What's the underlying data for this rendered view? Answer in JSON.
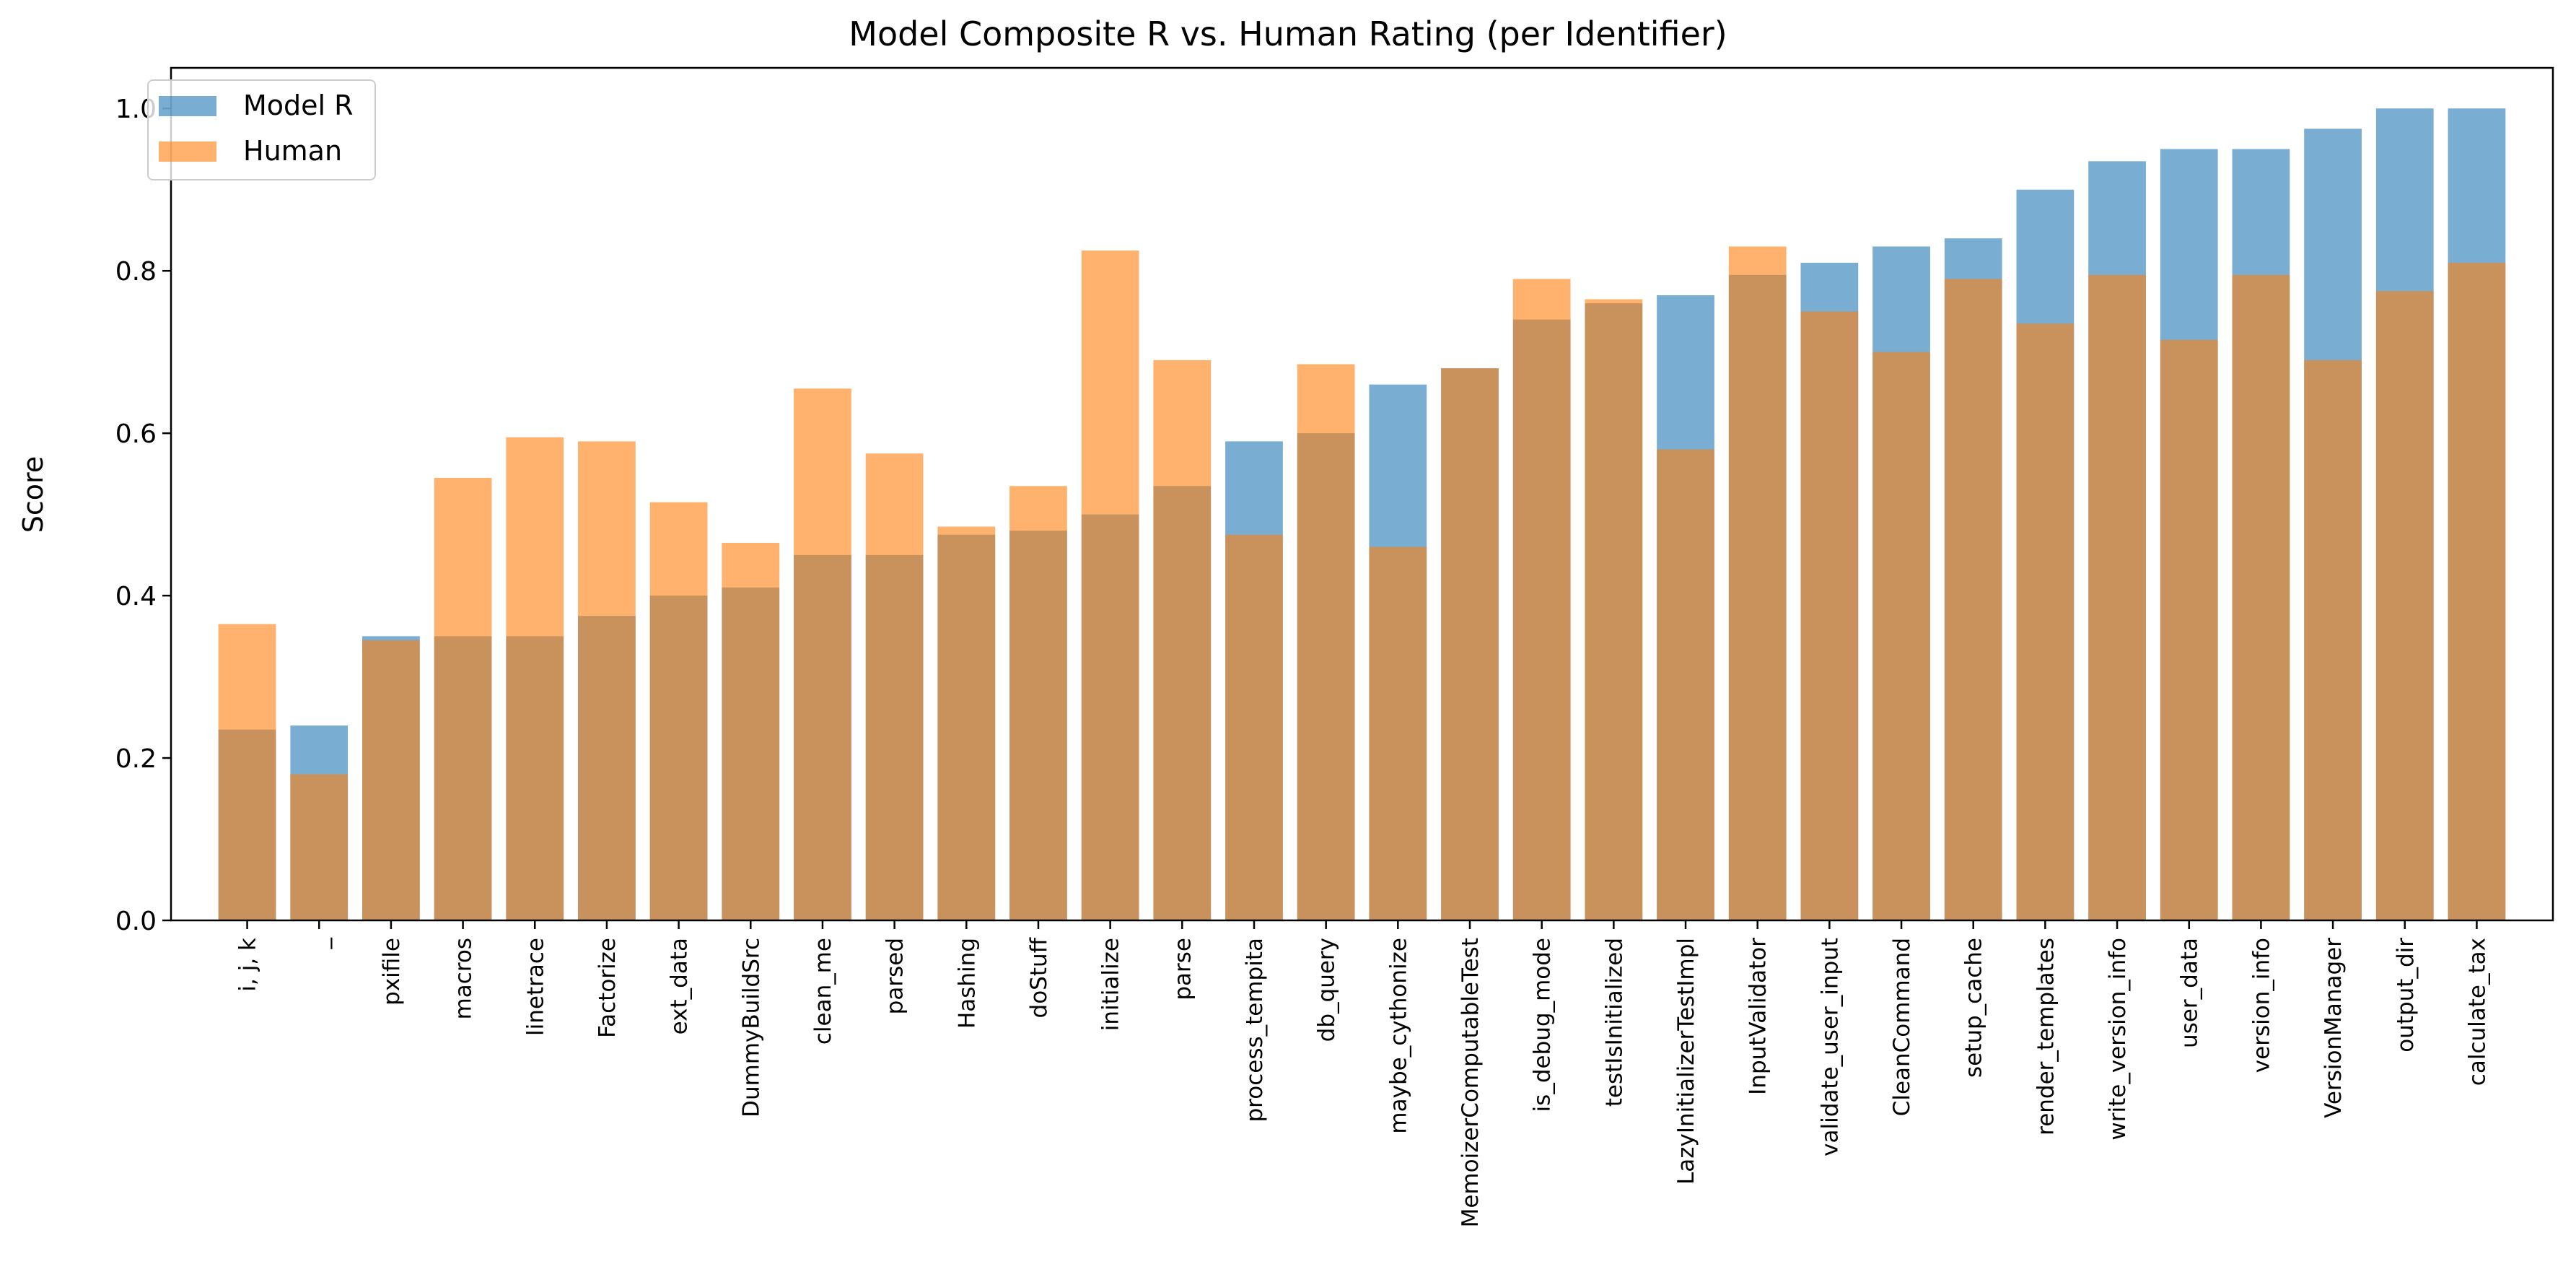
{
  "chart_data": {
    "type": "bar",
    "title": "Model Composite R vs. Human Rating (per Identifier)",
    "xlabel": "",
    "ylabel": "Score",
    "ylim": [
      0,
      1.05
    ],
    "yticks": [
      0.0,
      0.2,
      0.4,
      0.6,
      0.8,
      1.0
    ],
    "ytick_labels": [
      "0.0",
      "0.2",
      "0.4",
      "0.6",
      "0.8",
      "1.0"
    ],
    "grid": false,
    "legend_position": "top-left",
    "categories": [
      "i, j, k",
      "_",
      "pxifile",
      "macros",
      "linetrace",
      "Factorize",
      "ext_data",
      "DummyBuildSrc",
      "clean_me",
      "parsed",
      "Hashing",
      "doStuff",
      "initialize",
      "parse",
      "process_tempita",
      "db_query",
      "maybe_cythonize",
      "MemoizerComputableTest",
      "is_debug_mode",
      "testIsInitialized",
      "LazyInitializerTestImpl",
      "InputValidator",
      "validate_user_input",
      "CleanCommand",
      "setup_cache",
      "render_templates",
      "write_version_info",
      "user_data",
      "version_info",
      "VersionManager",
      "output_dir",
      "calculate_tax"
    ],
    "series": [
      {
        "name": "Model R",
        "color": "#1f77b4",
        "opacity": 0.6,
        "values": [
          0.235,
          0.24,
          0.35,
          0.35,
          0.35,
          0.375,
          0.4,
          0.41,
          0.45,
          0.45,
          0.475,
          0.48,
          0.5,
          0.535,
          0.59,
          0.6,
          0.66,
          0.68,
          0.74,
          0.76,
          0.77,
          0.795,
          0.81,
          0.83,
          0.84,
          0.9,
          0.935,
          0.95,
          0.95,
          0.975,
          1.0,
          1.0
        ]
      },
      {
        "name": "Human",
        "color": "#ff7f0e",
        "opacity": 0.6,
        "values": [
          0.365,
          0.18,
          0.345,
          0.545,
          0.595,
          0.59,
          0.515,
          0.465,
          0.655,
          0.575,
          0.485,
          0.535,
          0.825,
          0.69,
          0.475,
          0.685,
          0.46,
          0.68,
          0.79,
          0.765,
          0.58,
          0.83,
          0.75,
          0.7,
          0.79,
          0.735,
          0.795,
          0.715,
          0.795,
          0.69,
          0.775,
          0.81
        ]
      }
    ]
  }
}
